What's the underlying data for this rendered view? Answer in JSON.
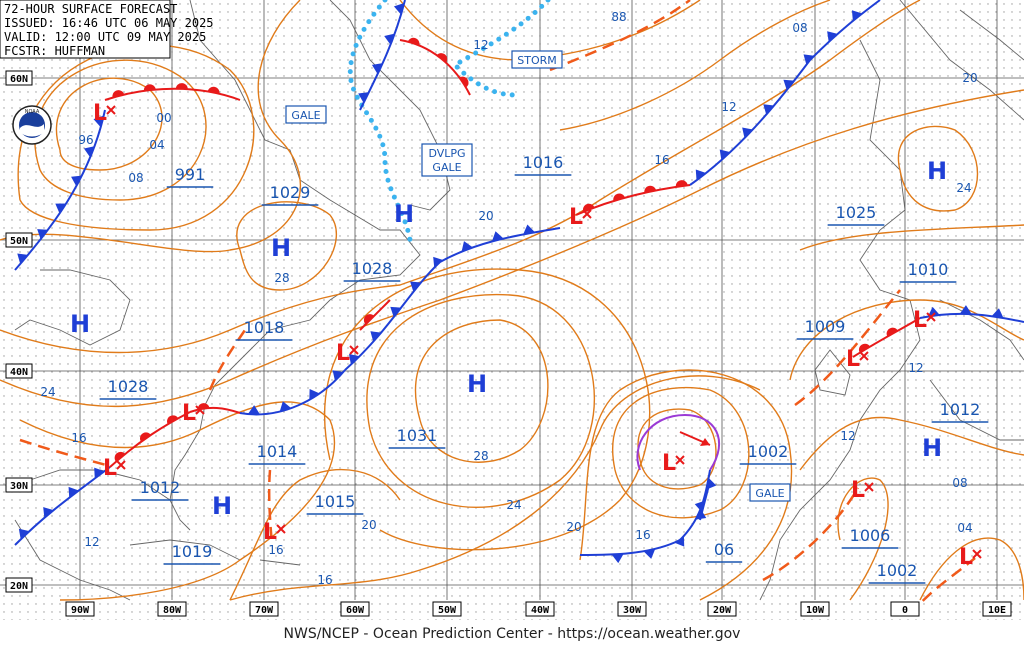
{
  "header": {
    "title": "72-HOUR SURFACE FORECAST",
    "issued": "ISSUED: 16:46 UTC 06 MAY 2025",
    "valid": "VALID: 12:00 UTC 09 MAY 2025",
    "forecaster": "FCSTR: HUFFMAN"
  },
  "logo": "NOAA",
  "footer": "NWS/NCEP - Ocean Prediction Center - https://ocean.weather.gov",
  "latitude_labels": [
    "60N",
    "50N",
    "40N",
    "30N",
    "20N"
  ],
  "longitude_labels": [
    "90W",
    "80W",
    "70W",
    "60W",
    "50W",
    "40W",
    "30W",
    "20W",
    "10W",
    "0",
    "10E"
  ],
  "pressure_labels": [
    "991",
    "1029",
    "1016",
    "1025",
    "1010",
    "1028",
    "1018",
    "1009",
    "1028",
    "1031",
    "1012",
    "1014",
    "1002",
    "1012",
    "1015",
    "1019",
    "06",
    "1006",
    "1002"
  ],
  "warnings": [
    "GALE",
    [
      "DVLPG",
      "GALE"
    ],
    "STORM",
    "GALE"
  ],
  "isobar_labels": [
    "96",
    "00",
    "04",
    "08",
    "12",
    "88",
    "08",
    "20",
    "12",
    "16",
    "20",
    "24",
    "28",
    "12",
    "24",
    "16",
    "12",
    "28",
    "08",
    "24",
    "20",
    "20",
    "16",
    "04",
    "12",
    "16",
    "16"
  ],
  "highs": [
    "H",
    "H",
    "H",
    "H",
    "H",
    "H",
    "H"
  ],
  "lows": [
    "L",
    "L",
    "L",
    "L",
    "L",
    "L",
    "L",
    "L",
    "L",
    "L",
    "L"
  ]
}
